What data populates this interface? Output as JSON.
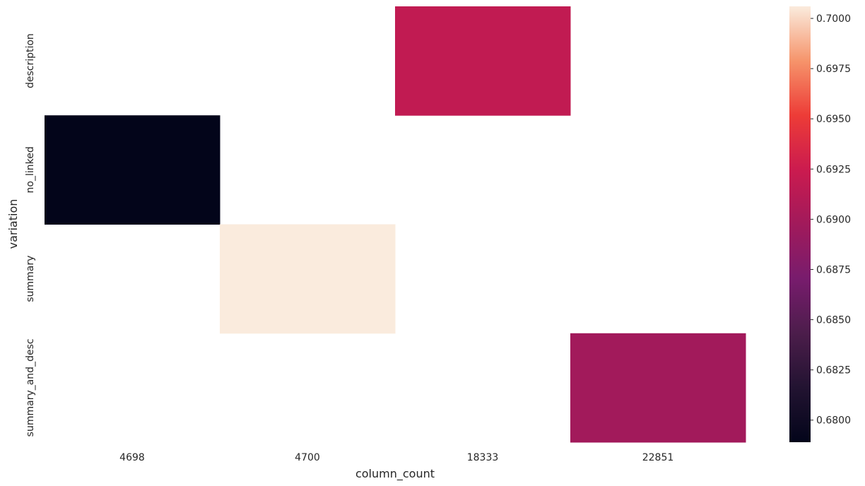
{
  "chart_data": {
    "type": "heatmap",
    "title": "",
    "xlabel": "column_count",
    "ylabel": "variation",
    "x_categories": [
      "4698",
      "4700",
      "18333",
      "22851"
    ],
    "y_categories": [
      "description",
      "no_linked",
      "summary",
      "summary_and_desc"
    ],
    "cells": [
      {
        "row": "description",
        "col": "18333",
        "value": 0.6918
      },
      {
        "row": "no_linked",
        "col": "4698",
        "value": 0.6789
      },
      {
        "row": "summary",
        "col": "4700",
        "value": 0.7006
      },
      {
        "row": "summary_and_desc",
        "col": "22851",
        "value": 0.6898
      }
    ],
    "missing_cells": "empty",
    "colorbar": {
      "min": 0.6789,
      "max": 0.7006,
      "ticks": [
        "0.6800",
        "0.6825",
        "0.6850",
        "0.6875",
        "0.6900",
        "0.6925",
        "0.6950",
        "0.6975",
        "0.7000"
      ],
      "colormap": "rocket"
    },
    "grid": false,
    "legend": "colorbar-right"
  }
}
